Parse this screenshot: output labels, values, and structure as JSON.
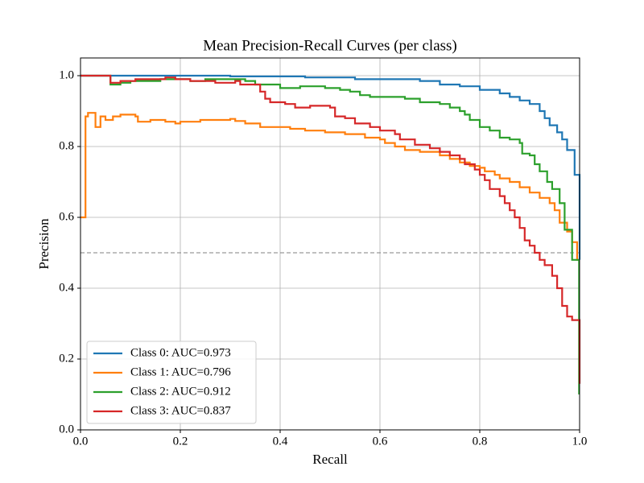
{
  "chart_data": {
    "type": "step",
    "title": "Mean Precision-Recall Curves (per class)",
    "x_label": "Recall",
    "y_label": "Precision",
    "xlim": [
      0,
      1
    ],
    "ylim": [
      0,
      1.05
    ],
    "xticks": [
      {
        "value": 0,
        "label": "0.0"
      },
      0.2,
      0.4,
      0.6,
      0.8,
      {
        "value": 1,
        "label": "1.0"
      }
    ],
    "yticks": [
      {
        "value": 0,
        "label": "0.0"
      },
      0.2,
      0.4,
      0.6,
      0.8,
      {
        "value": 1,
        "label": "1.0"
      }
    ],
    "grid": true,
    "legend": "lower left",
    "reference_line": 0.5,
    "series": [
      {
        "name": "Class 0: AUC=0.973",
        "color": "#1f77b4",
        "x": [
          0,
          0.3,
          0.45,
          0.55,
          0.68,
          0.72,
          0.76,
          0.8,
          0.84,
          0.86,
          0.88,
          0.9,
          0.92,
          0.93,
          0.94,
          0.955,
          0.965,
          0.975,
          0.985,
          0.99,
          1.0
        ],
        "values": [
          1.0,
          0.998,
          0.995,
          0.99,
          0.985,
          0.975,
          0.97,
          0.96,
          0.95,
          0.94,
          0.93,
          0.92,
          0.9,
          0.88,
          0.86,
          0.84,
          0.82,
          0.79,
          0.79,
          0.72,
          0.48
        ]
      },
      {
        "name": "Class 1: AUC=0.796",
        "color": "#ff7f0e",
        "x": [
          0,
          0.01,
          0.015,
          0.03,
          0.04,
          0.05,
          0.065,
          0.08,
          0.11,
          0.115,
          0.14,
          0.17,
          0.19,
          0.2,
          0.24,
          0.3,
          0.31,
          0.33,
          0.36,
          0.42,
          0.45,
          0.49,
          0.53,
          0.57,
          0.6,
          0.61,
          0.63,
          0.65,
          0.68,
          0.72,
          0.74,
          0.76,
          0.78,
          0.8,
          0.81,
          0.83,
          0.84,
          0.86,
          0.88,
          0.9,
          0.92,
          0.94,
          0.95,
          0.96,
          0.975,
          0.985,
          0.995,
          1.0
        ],
        "values": [
          0.6,
          0.885,
          0.895,
          0.855,
          0.885,
          0.875,
          0.885,
          0.89,
          0.885,
          0.87,
          0.875,
          0.87,
          0.865,
          0.87,
          0.875,
          0.878,
          0.872,
          0.865,
          0.855,
          0.85,
          0.845,
          0.84,
          0.835,
          0.825,
          0.82,
          0.81,
          0.8,
          0.79,
          0.785,
          0.775,
          0.765,
          0.755,
          0.745,
          0.74,
          0.73,
          0.72,
          0.71,
          0.7,
          0.685,
          0.67,
          0.655,
          0.64,
          0.62,
          0.585,
          0.56,
          0.53,
          0.48,
          0.48
        ]
      },
      {
        "name": "Class 2: AUC=0.912",
        "color": "#2ca02c",
        "x": [
          0,
          0.06,
          0.08,
          0.1,
          0.16,
          0.22,
          0.25,
          0.33,
          0.35,
          0.4,
          0.44,
          0.49,
          0.52,
          0.54,
          0.56,
          0.58,
          0.65,
          0.68,
          0.72,
          0.74,
          0.76,
          0.77,
          0.78,
          0.8,
          0.82,
          0.84,
          0.86,
          0.88,
          0.885,
          0.9,
          0.91,
          0.92,
          0.935,
          0.945,
          0.96,
          0.97,
          0.985,
          0.999
        ],
        "values": [
          1.0,
          0.975,
          0.98,
          0.985,
          0.99,
          0.985,
          0.99,
          0.985,
          0.975,
          0.965,
          0.97,
          0.965,
          0.96,
          0.955,
          0.945,
          0.94,
          0.935,
          0.925,
          0.92,
          0.91,
          0.9,
          0.89,
          0.875,
          0.855,
          0.845,
          0.825,
          0.82,
          0.81,
          0.78,
          0.775,
          0.75,
          0.73,
          0.7,
          0.68,
          0.64,
          0.565,
          0.48,
          0.1
        ]
      },
      {
        "name": "Class 3: AUC=0.837",
        "color": "#d62728",
        "x": [
          0,
          0.06,
          0.08,
          0.11,
          0.17,
          0.19,
          0.22,
          0.27,
          0.31,
          0.32,
          0.36,
          0.37,
          0.38,
          0.41,
          0.43,
          0.46,
          0.5,
          0.51,
          0.53,
          0.55,
          0.58,
          0.6,
          0.63,
          0.64,
          0.67,
          0.7,
          0.72,
          0.74,
          0.76,
          0.77,
          0.79,
          0.8,
          0.81,
          0.82,
          0.84,
          0.85,
          0.86,
          0.87,
          0.88,
          0.89,
          0.9,
          0.91,
          0.92,
          0.93,
          0.945,
          0.955,
          0.965,
          0.975,
          0.985,
          1.0
        ],
        "values": [
          1.0,
          0.98,
          0.985,
          0.99,
          0.995,
          0.99,
          0.985,
          0.98,
          0.985,
          0.975,
          0.955,
          0.935,
          0.925,
          0.92,
          0.91,
          0.915,
          0.91,
          0.885,
          0.88,
          0.865,
          0.855,
          0.845,
          0.835,
          0.82,
          0.805,
          0.795,
          0.785,
          0.775,
          0.765,
          0.75,
          0.735,
          0.72,
          0.705,
          0.68,
          0.66,
          0.64,
          0.62,
          0.6,
          0.57,
          0.535,
          0.52,
          0.5,
          0.48,
          0.465,
          0.435,
          0.4,
          0.35,
          0.32,
          0.31,
          0.13
        ]
      }
    ]
  }
}
